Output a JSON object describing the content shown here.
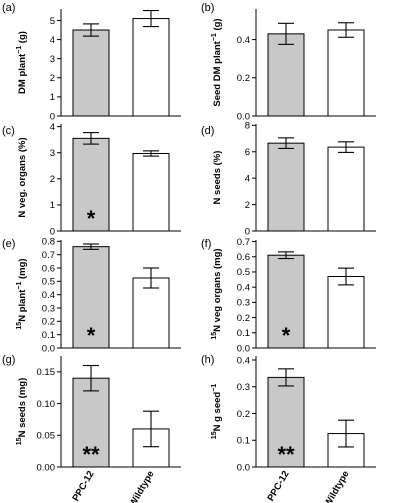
{
  "colors": {
    "bar_transgenic": "#c8c8c8",
    "bar_wildtype": "#ffffff",
    "stroke": "#000000"
  },
  "chart_data": [
    {
      "type": "bar",
      "panel": "(a)",
      "ylabel": "DM plant",
      "ylabel_sup": "−1",
      "ylabel_unit": " (g)",
      "categories": [
        "PPC-12",
        "Wildtype"
      ],
      "values": [
        4.5,
        5.1
      ],
      "errors": [
        0.32,
        0.42
      ],
      "ylim": [
        0,
        5.6
      ],
      "yticks": [
        "0",
        "1",
        "2",
        "3",
        "4",
        "5"
      ],
      "ytick_values": [
        0,
        1,
        2,
        3,
        4,
        5
      ],
      "significance": [
        "",
        ""
      ],
      "show_xlabels": false,
      "grid": false
    },
    {
      "type": "bar",
      "panel": "(b)",
      "ylabel": "Seed DM plant",
      "ylabel_sup": "−1",
      "ylabel_unit": " (g)",
      "categories": [
        "PPC-12",
        "Wildtype"
      ],
      "values": [
        0.43,
        0.45
      ],
      "errors": [
        0.055,
        0.038
      ],
      "ylim": [
        0,
        0.56
      ],
      "yticks": [
        "0.0",
        "0.2",
        "0.4"
      ],
      "ytick_values": [
        0,
        0.2,
        0.4
      ],
      "significance": [
        "",
        ""
      ],
      "show_xlabels": false,
      "grid": false
    },
    {
      "type": "bar",
      "panel": "(c)",
      "ylabel": "N veg. organs (%)",
      "ylabel_sup": "",
      "ylabel_unit": "",
      "categories": [
        "PPC-12",
        "Wildtype"
      ],
      "values": [
        3.55,
        2.97
      ],
      "errors": [
        0.22,
        0.1
      ],
      "ylim": [
        0,
        4.1
      ],
      "yticks": [
        "0",
        "1",
        "2",
        "3",
        "4"
      ],
      "ytick_values": [
        0,
        1,
        2,
        3,
        4
      ],
      "significance": [
        "*",
        ""
      ],
      "show_xlabels": false,
      "grid": false
    },
    {
      "type": "bar",
      "panel": "(d)",
      "ylabel": "N seeds (%)",
      "ylabel_sup": "",
      "ylabel_unit": "",
      "categories": [
        "PPC-12",
        "Wildtype"
      ],
      "values": [
        6.65,
        6.35
      ],
      "errors": [
        0.4,
        0.4
      ],
      "ylim": [
        0,
        8.1
      ],
      "yticks": [
        "0",
        "2",
        "4",
        "6",
        "8"
      ],
      "ytick_values": [
        0,
        2,
        4,
        6,
        8
      ],
      "significance": [
        "",
        ""
      ],
      "show_xlabels": false,
      "grid": false
    },
    {
      "type": "bar",
      "panel": "(e)",
      "ylabel_pre": "15",
      "ylabel": "N plant",
      "ylabel_sup": "−1",
      "ylabel_unit": " (mg)",
      "categories": [
        "PPC-12",
        "Wildtype"
      ],
      "values": [
        0.76,
        0.525
      ],
      "errors": [
        0.02,
        0.075
      ],
      "ylim": [
        0,
        0.81
      ],
      "yticks": [
        "0.0",
        "0.1",
        "0.2",
        "0.3",
        "0.4",
        "0.5",
        "0.6",
        "0.7",
        "0.8"
      ],
      "ytick_values": [
        0,
        0.1,
        0.2,
        0.3,
        0.4,
        0.5,
        0.6,
        0.7,
        0.8
      ],
      "significance": [
        "*",
        ""
      ],
      "show_xlabels": false,
      "grid": false
    },
    {
      "type": "bar",
      "panel": "(f)",
      "ylabel_pre": "15",
      "ylabel": "N veg organs (mg)",
      "ylabel_sup": "",
      "ylabel_unit": "",
      "categories": [
        "PPC-12",
        "Wildtype"
      ],
      "values": [
        0.61,
        0.47
      ],
      "errors": [
        0.022,
        0.055
      ],
      "ylim": [
        0,
        0.71
      ],
      "yticks": [
        "0.0",
        "0.1",
        "0.2",
        "0.3",
        "0.4",
        "0.5",
        "0.6",
        "0.7"
      ],
      "ytick_values": [
        0,
        0.1,
        0.2,
        0.3,
        0.4,
        0.5,
        0.6,
        0.7
      ],
      "significance": [
        "*",
        ""
      ],
      "show_xlabels": false,
      "grid": false
    },
    {
      "type": "bar",
      "panel": "(g)",
      "ylabel_pre": "15",
      "ylabel": "N seeds (mg)",
      "ylabel_sup": "",
      "ylabel_unit": "",
      "categories": [
        "PPC-12",
        "Wildtype"
      ],
      "values": [
        0.14,
        0.06
      ],
      "errors": [
        0.02,
        0.028
      ],
      "ylim": [
        0,
        0.175
      ],
      "yticks": [
        "0.00",
        "0.05",
        "0.10",
        "0.15"
      ],
      "ytick_values": [
        0,
        0.05,
        0.1,
        0.15
      ],
      "significance": [
        "**",
        ""
      ],
      "show_xlabels": true,
      "grid": false
    },
    {
      "type": "bar",
      "panel": "(h)",
      "ylabel_pre": "15",
      "ylabel": "N g seed",
      "ylabel_sup": "−1",
      "ylabel_unit": "",
      "categories": [
        "PPC-12",
        "Wildtype"
      ],
      "values": [
        0.335,
        0.125
      ],
      "errors": [
        0.032,
        0.05
      ],
      "ylim": [
        0,
        0.415
      ],
      "yticks": [
        "0.0",
        "0.1",
        "0.2",
        "0.3",
        "0.4"
      ],
      "ytick_values": [
        0,
        0.1,
        0.2,
        0.3,
        0.4
      ],
      "significance": [
        "**",
        ""
      ],
      "show_xlabels": true,
      "grid": false
    }
  ]
}
